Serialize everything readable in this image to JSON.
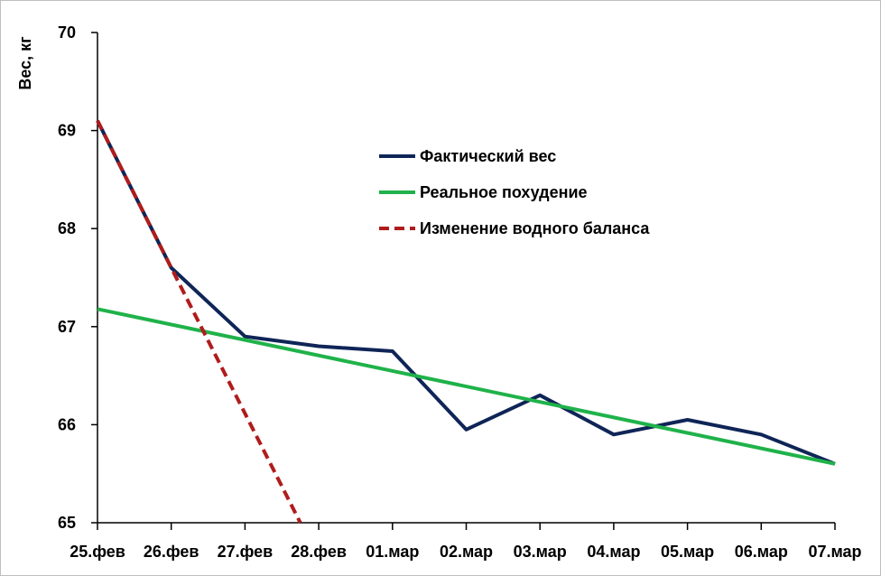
{
  "chart_data": {
    "type": "line",
    "ylabel": "Вес, кг",
    "ylim": [
      65,
      70
    ],
    "yticks": [
      "70",
      "69",
      "68",
      "67",
      "66",
      "65"
    ],
    "categories": [
      "25.фев",
      "26.фев",
      "27.фев",
      "28.фев",
      "01.мар",
      "02.мар",
      "03.мар",
      "04.мар",
      "05.мар",
      "06.мар",
      "07.мар"
    ],
    "grid": false,
    "legend_position": "upper-center",
    "series": [
      {
        "name": "Фактический вес",
        "color": "#0f2557",
        "style": "solid",
        "x": [
          0,
          1,
          2,
          3,
          4,
          5,
          6,
          7,
          8,
          9,
          10
        ],
        "values": [
          69.1,
          67.6,
          66.9,
          66.8,
          66.75,
          65.95,
          66.3,
          65.9,
          66.05,
          65.9,
          65.6
        ]
      },
      {
        "name": "Реальное похудение",
        "color": "#1fb24a",
        "style": "solid",
        "x": [
          0,
          10
        ],
        "values": [
          67.18,
          65.6
        ]
      },
      {
        "name": "Изменение водного баланса",
        "color": "#b01c1c",
        "style": "dashed",
        "x": [
          0,
          1,
          2.75
        ],
        "values": [
          69.1,
          67.6,
          65.0
        ]
      }
    ]
  }
}
